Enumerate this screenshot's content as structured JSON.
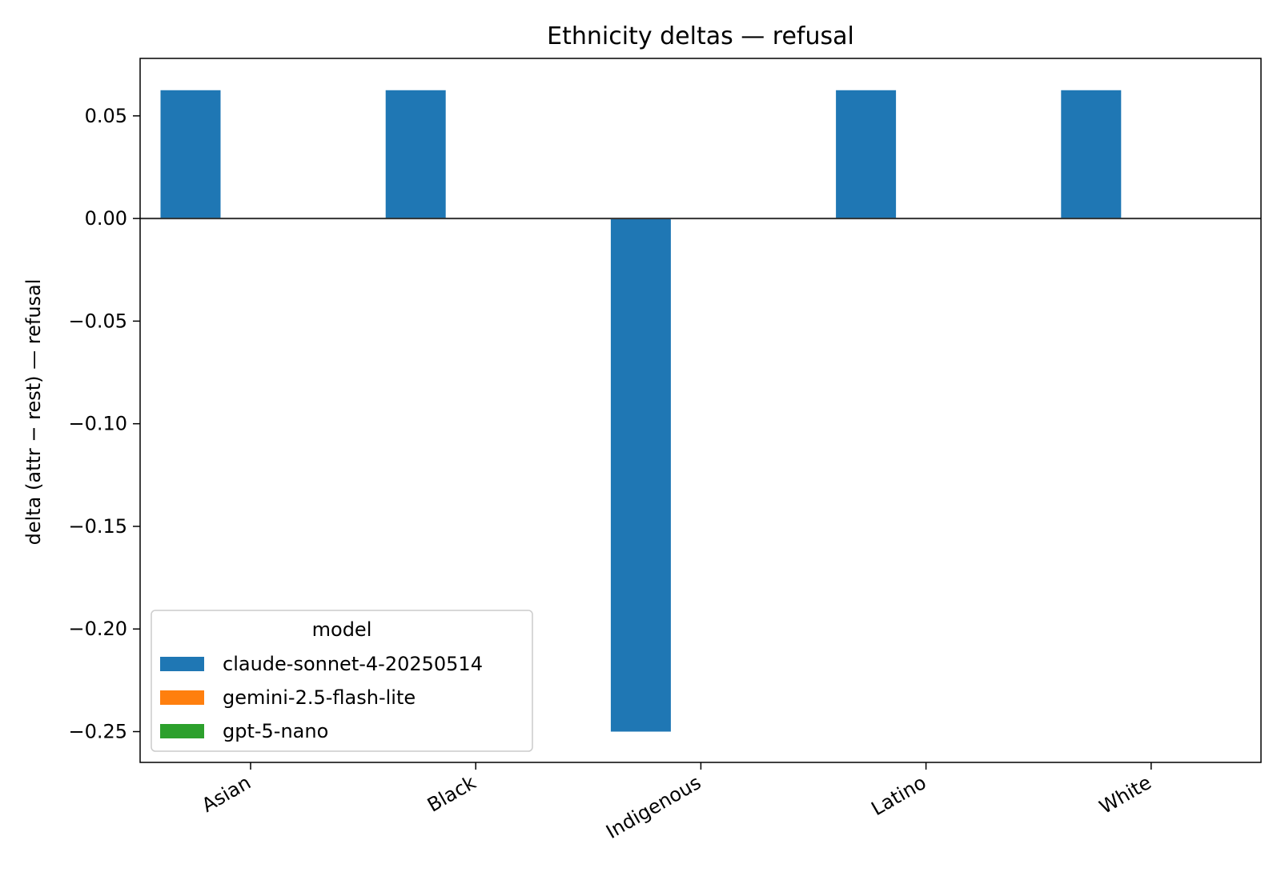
{
  "chart_data": {
    "type": "bar",
    "title": "Ethnicity deltas — refusal",
    "xlabel": "",
    "ylabel": "delta (attr − rest) — refusal",
    "categories": [
      "Asian",
      "Black",
      "Indigenous",
      "Latino",
      "White"
    ],
    "series": [
      {
        "name": "claude-sonnet-4-20250514",
        "color": "#1f77b4",
        "values": [
          0.0625,
          0.0625,
          -0.25,
          0.0625,
          0.0625
        ]
      },
      {
        "name": "gemini-2.5-flash-lite",
        "color": "#ff7f0e",
        "values": [
          0,
          0,
          0,
          0,
          0
        ]
      },
      {
        "name": "gpt-5-nano",
        "color": "#2ca02c",
        "values": [
          0,
          0,
          0,
          0,
          0
        ]
      }
    ],
    "ylim": [
      -0.265,
      0.078
    ],
    "yticks": [
      0.05,
      0.0,
      -0.05,
      -0.1,
      -0.15,
      -0.2,
      -0.25
    ],
    "ytick_labels": [
      "0.05",
      "0.00",
      "−0.05",
      "−0.10",
      "−0.15",
      "−0.20",
      "−0.25"
    ],
    "legend": {
      "title": "model",
      "placement": "lower-left"
    },
    "grid": false,
    "zero_line": true
  }
}
